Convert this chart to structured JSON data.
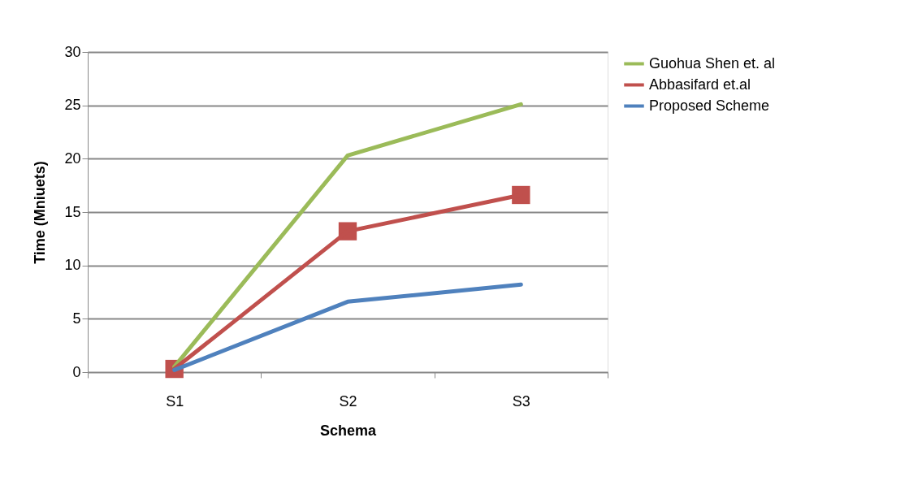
{
  "chart_data": {
    "type": "line",
    "xlabel": "Schema",
    "ylabel": "Time (Mniuets)",
    "categories": [
      "S1",
      "S2",
      "S3"
    ],
    "series": [
      {
        "name": "Guohua Shen et. al",
        "color": "#9bbb59",
        "values": [
          0.5,
          20.3,
          25.1
        ],
        "marker": "none"
      },
      {
        "name": "Abbasifard et.al",
        "color": "#c0504d",
        "values": [
          0.3,
          13.2,
          16.6
        ],
        "marker": "square"
      },
      {
        "name": "Proposed Scheme",
        "color": "#4f81bd",
        "values": [
          0.2,
          6.6,
          8.2
        ],
        "marker": "none"
      }
    ],
    "ylim": [
      0,
      30
    ],
    "yticks": [
      0,
      5,
      10,
      15,
      20,
      25,
      30
    ],
    "grid": "y",
    "legend": "right",
    "line_style": "solid"
  }
}
